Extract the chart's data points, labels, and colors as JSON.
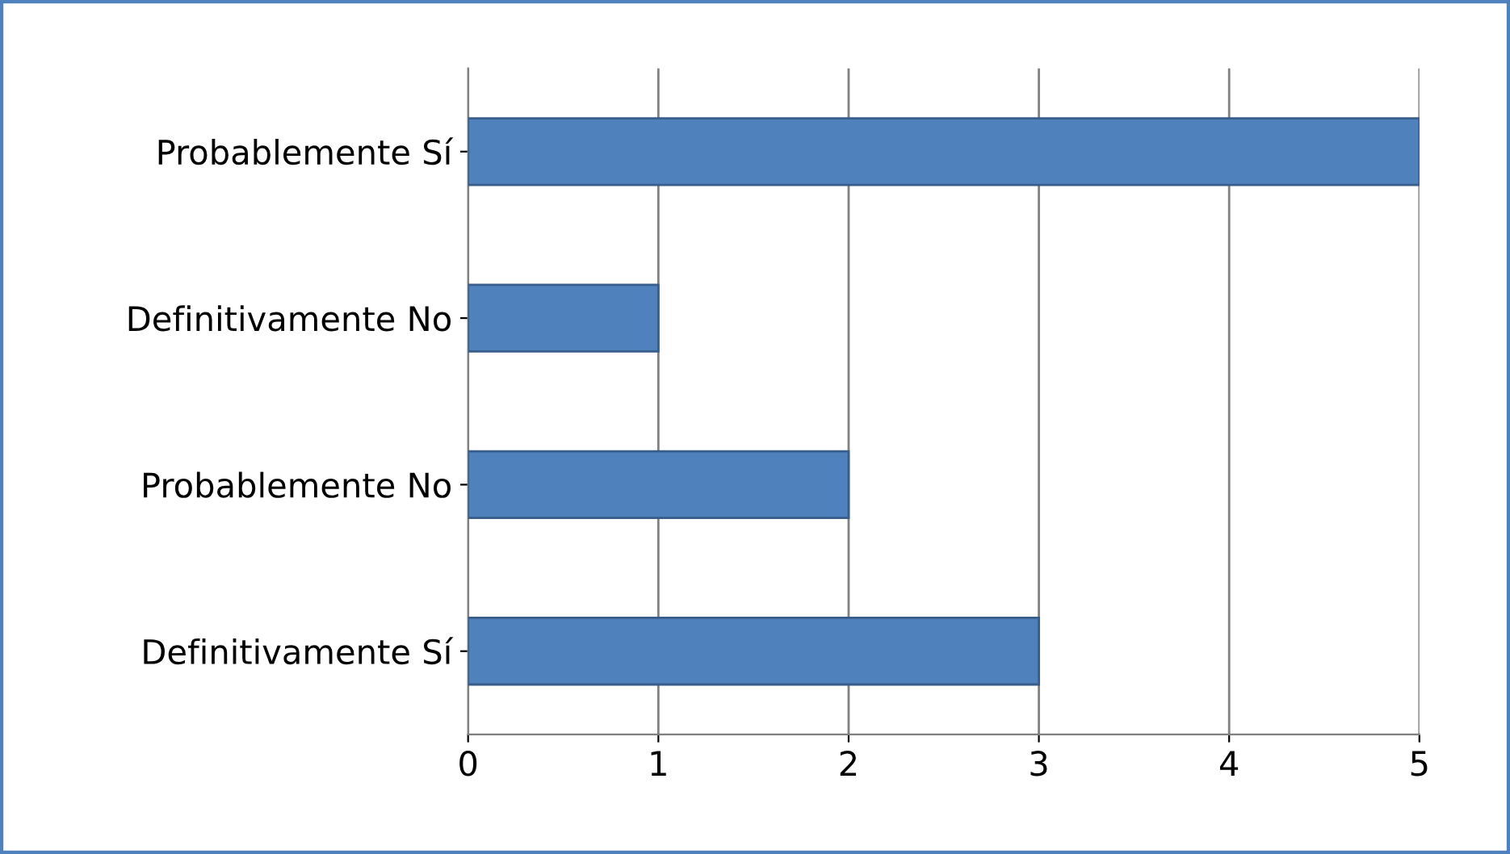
{
  "chart_data": {
    "type": "bar",
    "orientation": "horizontal",
    "categories": [
      "Probablemente Sí",
      "Definitivamente No",
      "Probablemente No",
      "Definitivamente Sí"
    ],
    "values": [
      5,
      1,
      2,
      3
    ],
    "color": "#4f81bd",
    "xlim": [
      0,
      5
    ],
    "xticks": [
      0,
      1,
      2,
      3,
      4,
      5
    ],
    "grid": "x",
    "legend": false
  }
}
